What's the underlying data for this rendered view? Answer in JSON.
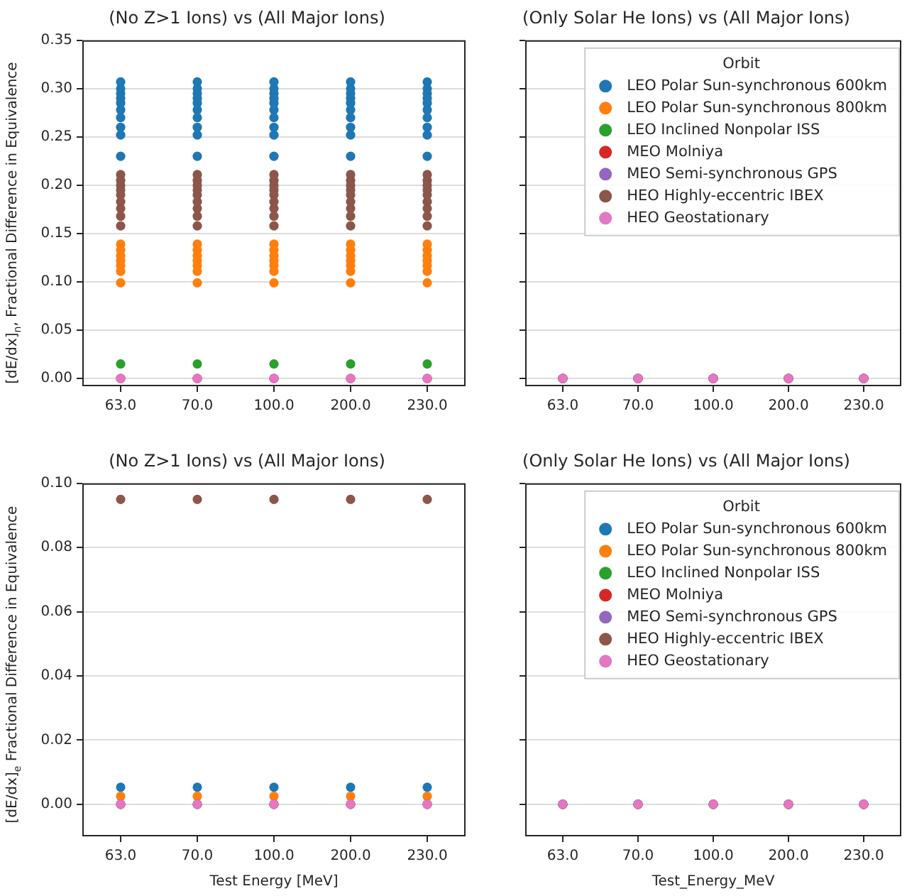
{
  "chart_data": [
    {
      "type": "scatter",
      "title": "(No Z>1 Ions) vs (All Major Ions)",
      "ylabel": "[dE/dx]$_{n}$, Fractional Difference in Equivalence",
      "categories": [
        "63.0",
        "70.0",
        "100.0",
        "200.0",
        "230.0"
      ],
      "ylim": [
        -0.008,
        0.35
      ],
      "yticks": [
        {
          "value": 0,
          "label": "0.00"
        },
        {
          "value": 0.05,
          "label": "0.05"
        },
        {
          "value": 0.1,
          "label": "0.10"
        },
        {
          "value": 0.15,
          "label": "0.15"
        },
        {
          "value": 0.2,
          "label": "0.20"
        },
        {
          "value": 0.25,
          "label": "0.25"
        },
        {
          "value": 0.3,
          "label": "0.30"
        },
        {
          "value": 0.35,
          "label": "0.35"
        }
      ],
      "grid": "y",
      "marker": "circle",
      "series": [
        {
          "color": "#1f77b4",
          "x": [
            "63.0",
            "63.0",
            "63.0",
            "63.0",
            "63.0",
            "63.0",
            "63.0",
            "63.0",
            "63.0",
            "63.0",
            "70.0",
            "70.0",
            "70.0",
            "70.0",
            "70.0",
            "70.0",
            "70.0",
            "70.0",
            "70.0",
            "70.0",
            "100.0",
            "100.0",
            "100.0",
            "100.0",
            "100.0",
            "100.0",
            "100.0",
            "100.0",
            "100.0",
            "100.0",
            "200.0",
            "200.0",
            "200.0",
            "200.0",
            "200.0",
            "200.0",
            "200.0",
            "200.0",
            "200.0",
            "200.0",
            "230.0",
            "230.0",
            "230.0",
            "230.0",
            "230.0",
            "230.0",
            "230.0",
            "230.0",
            "230.0",
            "230.0"
          ],
          "values": [
            0.307,
            0.3,
            0.295,
            0.29,
            0.285,
            0.278,
            0.27,
            0.26,
            0.252,
            0.23,
            0.307,
            0.3,
            0.295,
            0.29,
            0.285,
            0.278,
            0.27,
            0.26,
            0.252,
            0.23,
            0.307,
            0.3,
            0.295,
            0.29,
            0.285,
            0.278,
            0.27,
            0.26,
            0.252,
            0.23,
            0.307,
            0.3,
            0.295,
            0.29,
            0.285,
            0.278,
            0.27,
            0.26,
            0.252,
            0.23,
            0.307,
            0.3,
            0.295,
            0.29,
            0.285,
            0.278,
            0.27,
            0.26,
            0.252,
            0.23
          ]
        },
        {
          "color": "#ff7f0e",
          "x": [
            "63.0",
            "63.0",
            "63.0",
            "63.0",
            "63.0",
            "63.0",
            "63.0",
            "70.0",
            "70.0",
            "70.0",
            "70.0",
            "70.0",
            "70.0",
            "70.0",
            "100.0",
            "100.0",
            "100.0",
            "100.0",
            "100.0",
            "100.0",
            "100.0",
            "200.0",
            "200.0",
            "200.0",
            "200.0",
            "200.0",
            "200.0",
            "200.0",
            "230.0",
            "230.0",
            "230.0",
            "230.0",
            "230.0",
            "230.0",
            "230.0"
          ],
          "values": [
            0.139,
            0.133,
            0.127,
            0.122,
            0.117,
            0.111,
            0.099,
            0.139,
            0.133,
            0.127,
            0.122,
            0.117,
            0.111,
            0.099,
            0.139,
            0.133,
            0.127,
            0.122,
            0.117,
            0.111,
            0.099,
            0.139,
            0.133,
            0.127,
            0.122,
            0.117,
            0.111,
            0.099,
            0.139,
            0.133,
            0.127,
            0.122,
            0.117,
            0.111,
            0.099
          ]
        },
        {
          "color": "#2ca02c",
          "x": [
            "63.0",
            "70.0",
            "100.0",
            "200.0",
            "230.0"
          ],
          "values": [
            0.015,
            0.015,
            0.015,
            0.015,
            0.015
          ]
        },
        {
          "color": "#d62728",
          "x": [
            "63.0",
            "70.0",
            "100.0",
            "200.0",
            "230.0"
          ],
          "values": [
            0,
            0,
            0,
            0,
            0
          ]
        },
        {
          "color": "#9467bd",
          "x": [
            "63.0",
            "70.0",
            "100.0",
            "200.0",
            "230.0"
          ],
          "values": [
            0,
            0,
            0,
            0,
            0
          ]
        },
        {
          "color": "#8c564b",
          "x": [
            "63.0",
            "63.0",
            "63.0",
            "63.0",
            "63.0",
            "63.0",
            "63.0",
            "63.0",
            "63.0",
            "70.0",
            "70.0",
            "70.0",
            "70.0",
            "70.0",
            "70.0",
            "70.0",
            "70.0",
            "70.0",
            "100.0",
            "100.0",
            "100.0",
            "100.0",
            "100.0",
            "100.0",
            "100.0",
            "100.0",
            "100.0",
            "200.0",
            "200.0",
            "200.0",
            "200.0",
            "200.0",
            "200.0",
            "200.0",
            "200.0",
            "200.0",
            "230.0",
            "230.0",
            "230.0",
            "230.0",
            "230.0",
            "230.0",
            "230.0",
            "230.0",
            "230.0"
          ],
          "values": [
            0.211,
            0.205,
            0.2,
            0.195,
            0.19,
            0.183,
            0.176,
            0.168,
            0.158,
            0.211,
            0.205,
            0.2,
            0.195,
            0.19,
            0.183,
            0.176,
            0.168,
            0.158,
            0.211,
            0.205,
            0.2,
            0.195,
            0.19,
            0.183,
            0.176,
            0.168,
            0.158,
            0.211,
            0.205,
            0.2,
            0.195,
            0.19,
            0.183,
            0.176,
            0.168,
            0.158,
            0.211,
            0.205,
            0.2,
            0.195,
            0.19,
            0.183,
            0.176,
            0.168,
            0.158
          ]
        },
        {
          "color": "#e377c2",
          "x": [
            "63.0",
            "70.0",
            "100.0",
            "200.0",
            "230.0"
          ],
          "values": [
            0,
            0,
            0,
            0,
            0
          ]
        }
      ]
    },
    {
      "type": "scatter",
      "title": "(Only Solar He Ions) vs (All Major Ions)",
      "legend_title": "Orbit",
      "legend": "top right",
      "categories": [
        "63.0",
        "70.0",
        "100.0",
        "200.0",
        "230.0"
      ],
      "ylim": [
        -0.008,
        0.35
      ],
      "yticks": [
        {
          "value": 0,
          "label": null
        },
        {
          "value": 0.05,
          "label": null
        },
        {
          "value": 0.1,
          "label": null
        },
        {
          "value": 0.15,
          "label": null
        },
        {
          "value": 0.2,
          "label": null
        },
        {
          "value": 0.25,
          "label": null
        },
        {
          "value": 0.3,
          "label": null
        },
        {
          "value": 0.35,
          "label": null
        }
      ],
      "tick_labels": "x",
      "grid": "y",
      "marker": "circle",
      "series": [
        {
          "name": "LEO Polar Sun-synchronous 600km",
          "color": "#1f77b4",
          "x": [
            "63.0",
            "70.0",
            "100.0",
            "200.0",
            "230.0"
          ],
          "values": [
            0,
            0,
            0,
            0,
            0
          ]
        },
        {
          "name": "LEO Polar Sun-synchronous 800km",
          "color": "#ff7f0e",
          "x": [
            "63.0",
            "70.0",
            "100.0",
            "200.0",
            "230.0"
          ],
          "values": [
            0,
            0,
            0,
            0,
            0
          ]
        },
        {
          "name": "LEO Inclined Nonpolar ISS",
          "color": "#2ca02c",
          "x": [
            "63.0",
            "70.0",
            "100.0",
            "200.0",
            "230.0"
          ],
          "values": [
            0,
            0,
            0,
            0,
            0
          ]
        },
        {
          "name": "MEO Molniya",
          "color": "#d62728",
          "x": [
            "63.0",
            "70.0",
            "100.0",
            "200.0",
            "230.0"
          ],
          "values": [
            0,
            0,
            0,
            0,
            0
          ]
        },
        {
          "name": "MEO Semi-synchronous GPS",
          "color": "#9467bd",
          "x": [
            "63.0",
            "70.0",
            "100.0",
            "200.0",
            "230.0"
          ],
          "values": [
            0,
            0,
            0,
            0,
            0
          ]
        },
        {
          "name": "HEO Highly-eccentric IBEX",
          "color": "#8c564b",
          "x": [
            "63.0",
            "70.0",
            "100.0",
            "200.0",
            "230.0"
          ],
          "values": [
            0,
            0,
            0,
            0,
            0
          ]
        },
        {
          "name": "HEO Geostationary",
          "color": "#e377c2",
          "x": [
            "63.0",
            "70.0",
            "100.0",
            "200.0",
            "230.0"
          ],
          "values": [
            0,
            0,
            0,
            0,
            0
          ]
        }
      ]
    },
    {
      "type": "scatter",
      "title": "(No Z>1 Ions) vs (All Major Ions)",
      "ylabel": "[dE/dx]$_{e}$ Fractional Difference in Equivalence",
      "xlabel": "Test Energy [MeV]",
      "categories": [
        "63.0",
        "70.0",
        "100.0",
        "200.0",
        "230.0"
      ],
      "ylim": [
        -0.01,
        0.1
      ],
      "yticks": [
        {
          "value": 0,
          "label": "0.00"
        },
        {
          "value": 0.02,
          "label": "0.02"
        },
        {
          "value": 0.04,
          "label": "0.04"
        },
        {
          "value": 0.06,
          "label": "0.06"
        },
        {
          "value": 0.08,
          "label": "0.08"
        },
        {
          "value": 0.1,
          "label": "0.10"
        }
      ],
      "grid": "y",
      "marker": "circle",
      "series": [
        {
          "color": "#1f77b4",
          "x": [
            "63.0",
            "70.0",
            "100.0",
            "200.0",
            "230.0"
          ],
          "values": [
            0.0053,
            0.0053,
            0.0053,
            0.0053,
            0.0053
          ]
        },
        {
          "color": "#ff7f0e",
          "x": [
            "63.0",
            "70.0",
            "100.0",
            "200.0",
            "230.0"
          ],
          "values": [
            0.0025,
            0.0025,
            0.0025,
            0.0025,
            0.0025
          ]
        },
        {
          "color": "#2ca02c",
          "x": [
            "63.0",
            "70.0",
            "100.0",
            "200.0",
            "230.0"
          ],
          "values": [
            0,
            0,
            0,
            0,
            0
          ]
        },
        {
          "color": "#d62728",
          "x": [
            "63.0",
            "70.0",
            "100.0",
            "200.0",
            "230.0"
          ],
          "values": [
            0,
            0,
            0,
            0,
            0
          ]
        },
        {
          "color": "#9467bd",
          "x": [
            "63.0",
            "70.0",
            "100.0",
            "200.0",
            "230.0"
          ],
          "values": [
            0,
            0,
            0,
            0,
            0
          ]
        },
        {
          "color": "#8c564b",
          "x": [
            "63.0",
            "70.0",
            "100.0",
            "200.0",
            "230.0"
          ],
          "values": [
            0.095,
            0.095,
            0.095,
            0.095,
            0.095
          ]
        },
        {
          "color": "#e377c2",
          "x": [
            "63.0",
            "70.0",
            "100.0",
            "200.0",
            "230.0"
          ],
          "values": [
            0,
            0,
            0,
            0,
            0
          ]
        }
      ]
    },
    {
      "type": "scatter",
      "title": "(Only Solar He Ions) vs (All Major Ions)",
      "xlabel": "Test_Energy_MeV",
      "legend_title": "Orbit",
      "legend": "top right",
      "categories": [
        "63.0",
        "70.0",
        "100.0",
        "200.0",
        "230.0"
      ],
      "ylim": [
        -0.01,
        0.1
      ],
      "yticks": [
        {
          "value": 0,
          "label": null
        },
        {
          "value": 0.02,
          "label": null
        },
        {
          "value": 0.04,
          "label": null
        },
        {
          "value": 0.06,
          "label": null
        },
        {
          "value": 0.08,
          "label": null
        },
        {
          "value": 0.1,
          "label": null
        }
      ],
      "tick_labels": "x",
      "grid": "y",
      "marker": "circle",
      "series": [
        {
          "name": "LEO Polar Sun-synchronous 600km",
          "color": "#1f77b4",
          "x": [
            "63.0",
            "70.0",
            "100.0",
            "200.0",
            "230.0"
          ],
          "values": [
            0,
            0,
            0,
            0,
            0
          ]
        },
        {
          "name": "LEO Polar Sun-synchronous 800km",
          "color": "#ff7f0e",
          "x": [
            "63.0",
            "70.0",
            "100.0",
            "200.0",
            "230.0"
          ],
          "values": [
            0,
            0,
            0,
            0,
            0
          ]
        },
        {
          "name": "LEO Inclined Nonpolar ISS",
          "color": "#2ca02c",
          "x": [
            "63.0",
            "70.0",
            "100.0",
            "200.0",
            "230.0"
          ],
          "values": [
            0,
            0,
            0,
            0,
            0
          ]
        },
        {
          "name": "MEO Molniya",
          "color": "#d62728",
          "x": [
            "63.0",
            "70.0",
            "100.0",
            "200.0",
            "230.0"
          ],
          "values": [
            0,
            0,
            0,
            0,
            0
          ]
        },
        {
          "name": "MEO Semi-synchronous GPS",
          "color": "#9467bd",
          "x": [
            "63.0",
            "70.0",
            "100.0",
            "200.0",
            "230.0"
          ],
          "values": [
            0,
            0,
            0,
            0,
            0
          ]
        },
        {
          "name": "HEO Highly-eccentric IBEX",
          "color": "#8c564b",
          "x": [
            "63.0",
            "70.0",
            "100.0",
            "200.0",
            "230.0"
          ],
          "values": [
            0,
            0,
            0,
            0,
            0
          ]
        },
        {
          "name": "HEO Geostationary",
          "color": "#e377c2",
          "x": [
            "63.0",
            "70.0",
            "100.0",
            "200.0",
            "230.0"
          ],
          "values": [
            0,
            0,
            0,
            0,
            0
          ]
        }
      ]
    }
  ]
}
